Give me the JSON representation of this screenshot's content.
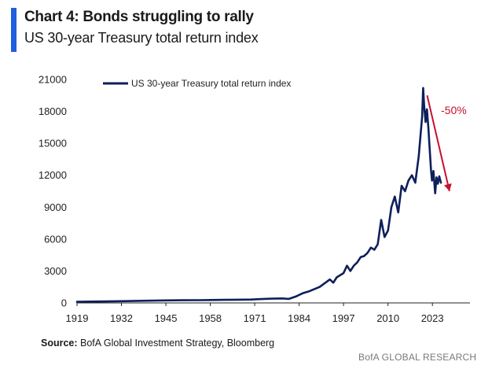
{
  "header": {
    "title": "Chart 4: Bonds struggling to rally",
    "subtitle": "US 30-year Treasury total return index"
  },
  "footer": {
    "source_label": "Source:",
    "source_text": " BofA Global Investment Strategy, Bloomberg",
    "brand": "BofA GLOBAL RESEARCH"
  },
  "colors": {
    "accent": "#1f5fe0",
    "series": "#0e1f5b",
    "annotation": "#c8102e",
    "axis": "#222222"
  },
  "chart_data": {
    "type": "line",
    "title": "Chart 4: Bonds struggling to rally",
    "subtitle": "US 30-year Treasury total return index",
    "xlabel": "",
    "ylabel": "",
    "xlim": [
      1919,
      2034
    ],
    "ylim": [
      0,
      21000
    ],
    "x_ticks": [
      "1919",
      "1932",
      "1945",
      "1958",
      "1971",
      "1984",
      "1997",
      "2010",
      "2023"
    ],
    "y_ticks": [
      "0",
      "3000",
      "6000",
      "9000",
      "12000",
      "15000",
      "18000",
      "21000"
    ],
    "grid": false,
    "legend": "top-left",
    "series": [
      {
        "name": "US 30-year Treasury total return index",
        "points": [
          [
            1919,
            100
          ],
          [
            1925,
            130
          ],
          [
            1932,
            160
          ],
          [
            1938,
            200
          ],
          [
            1945,
            240
          ],
          [
            1950,
            250
          ],
          [
            1955,
            260
          ],
          [
            1958,
            270
          ],
          [
            1962,
            290
          ],
          [
            1966,
            300
          ],
          [
            1970,
            320
          ],
          [
            1973,
            360
          ],
          [
            1976,
            400
          ],
          [
            1979,
            420
          ],
          [
            1981,
            380
          ],
          [
            1983,
            600
          ],
          [
            1985,
            900
          ],
          [
            1987,
            1100
          ],
          [
            1990,
            1500
          ],
          [
            1993,
            2200
          ],
          [
            1994,
            1900
          ],
          [
            1995,
            2400
          ],
          [
            1997,
            2800
          ],
          [
            1998,
            3500
          ],
          [
            1999,
            3000
          ],
          [
            2000,
            3500
          ],
          [
            2001,
            3800
          ],
          [
            2002,
            4300
          ],
          [
            2003,
            4400
          ],
          [
            2004,
            4700
          ],
          [
            2005,
            5200
          ],
          [
            2006,
            5000
          ],
          [
            2007,
            5500
          ],
          [
            2008,
            7800
          ],
          [
            2009,
            6200
          ],
          [
            2010,
            6800
          ],
          [
            2011,
            9000
          ],
          [
            2012,
            10000
          ],
          [
            2013,
            8500
          ],
          [
            2014,
            11000
          ],
          [
            2015,
            10500
          ],
          [
            2016,
            11500
          ],
          [
            2017,
            12000
          ],
          [
            2018,
            11300
          ],
          [
            2019,
            13800
          ],
          [
            2020,
            17500
          ],
          [
            2020.3,
            20200
          ],
          [
            2020.6,
            18500
          ],
          [
            2021,
            17000
          ],
          [
            2021.4,
            18200
          ],
          [
            2021.8,
            16500
          ],
          [
            2022.2,
            14500
          ],
          [
            2022.6,
            12500
          ],
          [
            2022.9,
            11500
          ],
          [
            2023.3,
            12400
          ],
          [
            2023.8,
            10300
          ],
          [
            2024.2,
            11800
          ],
          [
            2024.6,
            11200
          ],
          [
            2025,
            11900
          ],
          [
            2025.5,
            11300
          ]
        ]
      }
    ],
    "annotations": [
      {
        "text": "-50%",
        "arrow_from": [
          2021,
          19800
        ],
        "arrow_to": [
          2028,
          10500
        ]
      }
    ]
  }
}
